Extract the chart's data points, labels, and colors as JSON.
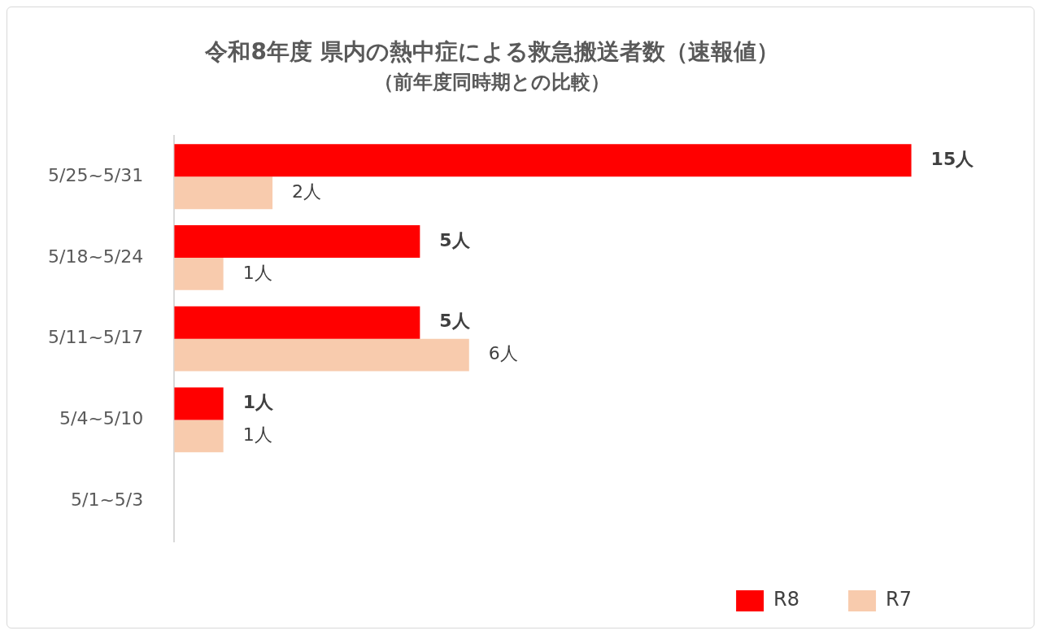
{
  "chart_data": {
    "type": "bar",
    "orientation": "horizontal",
    "title": "令和8年度 県内の熱中症による救急搬送者数（速報値）",
    "subtitle": "（前年度同時期との比較）",
    "categories": [
      "5/25~5/31",
      "5/18~5/24",
      "5/11~5/17",
      "5/4~5/10",
      "5/1~5/3"
    ],
    "series": [
      {
        "name": "R8",
        "color": "#ff0000",
        "values": [
          15,
          5,
          5,
          1,
          null
        ],
        "value_labels": [
          "15人",
          "5人",
          "5人",
          "1人",
          null
        ]
      },
      {
        "name": "R7",
        "color": "#f8cbad",
        "values": [
          2,
          1,
          6,
          1,
          null
        ],
        "value_labels": [
          "2人",
          "1人",
          "6人",
          "1人",
          null
        ]
      }
    ],
    "legend": "bottom right",
    "tick_labels": "y"
  }
}
